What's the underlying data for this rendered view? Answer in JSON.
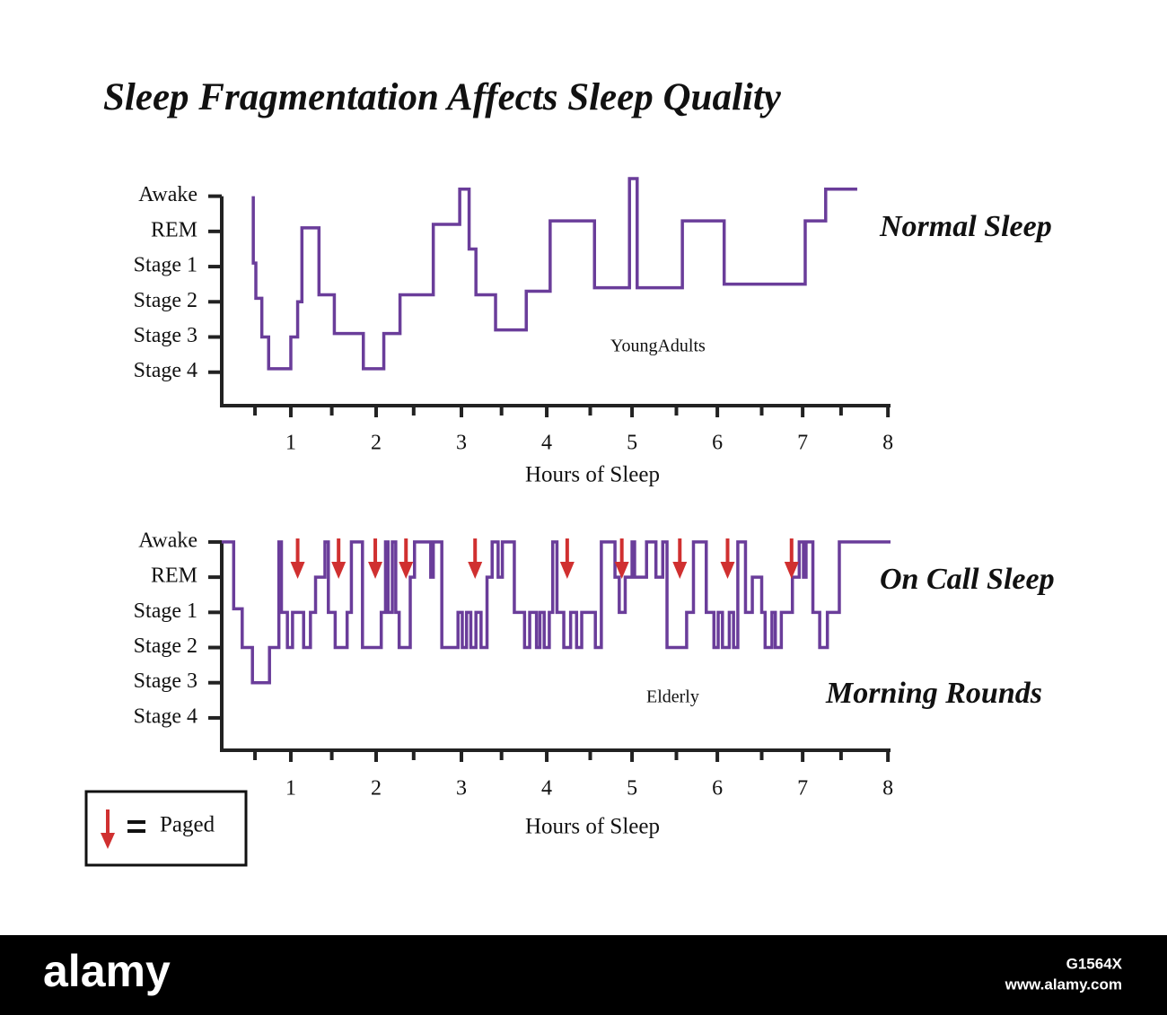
{
  "title": "Sleep Fragmentation Affects Sleep Quality",
  "legend": {
    "label": "Paged"
  },
  "watermark": {
    "brand": "alamy",
    "id": "G1564X",
    "url": "www.alamy.com"
  },
  "chart_data": [
    {
      "type": "line",
      "step": "post",
      "label": "Normal Sleep",
      "annotation": "YoungAdults",
      "xlabel": "Hours of Sleep",
      "color": "#6a3d9a",
      "xlim": [
        0.19,
        8.03
      ],
      "xticks": [
        1,
        2,
        3,
        4,
        5,
        6,
        7,
        8
      ],
      "xminor": [
        0.58,
        1.48,
        2.44,
        3.47,
        4.51,
        5.52,
        6.52,
        7.45
      ],
      "ylim": [
        -0.95,
        5.5
      ],
      "yticks": [
        {
          "value": 0,
          "label": "Stage 4"
        },
        {
          "value": 1,
          "label": "Stage 3"
        },
        {
          "value": 2,
          "label": "Stage 2"
        },
        {
          "value": 3,
          "label": "Stage 1"
        },
        {
          "value": 4,
          "label": "REM"
        },
        {
          "value": 5,
          "label": "Awake"
        }
      ],
      "x": [
        0.56,
        0.56,
        0.59,
        0.66,
        0.74,
        1.0,
        1.08,
        1.13,
        1.33,
        1.51,
        1.85,
        2.09,
        2.28,
        2.67,
        2.98,
        3.09,
        3.17,
        3.4,
        3.76,
        4.04,
        4.56,
        4.97,
        5.06,
        5.59,
        6.08,
        7.03,
        7.27,
        7.64
      ],
      "values": [
        5,
        3.1,
        2.1,
        1,
        0.1,
        1,
        2,
        4.1,
        2.2,
        1.1,
        0.1,
        1.1,
        2.2,
        4.2,
        5.2,
        3.5,
        2.2,
        1.2,
        2.3,
        4.3,
        2.4,
        5.5,
        2.4,
        4.3,
        2.5,
        4.3,
        5.2,
        5.2
      ]
    },
    {
      "type": "line",
      "step": "post",
      "label": "On Call Sleep",
      "label2": "Morning Rounds",
      "annotation": "Elderly",
      "xlabel": "Hours of Sleep",
      "color": "#6a3d9a",
      "paged_color": "#d03030",
      "xlim": [
        0.19,
        8.03
      ],
      "xticks": [
        1,
        2,
        3,
        4,
        5,
        6,
        7,
        8
      ],
      "xminor": [
        0.58,
        1.48,
        2.44,
        3.47,
        4.51,
        5.52,
        6.52,
        7.45
      ],
      "ylim": [
        -0.92,
        5.1
      ],
      "yticks": [
        {
          "value": 0,
          "label": "Stage 4"
        },
        {
          "value": 1,
          "label": "Stage 3"
        },
        {
          "value": 2,
          "label": "Stage 2"
        },
        {
          "value": 3,
          "label": "Stage 1"
        },
        {
          "value": 4,
          "label": "REM"
        },
        {
          "value": 5,
          "label": "Awake"
        }
      ],
      "x": [
        0.19,
        0.33,
        0.43,
        0.55,
        0.75,
        0.86,
        0.89,
        0.96,
        1.02,
        1.15,
        1.23,
        1.29,
        1.4,
        1.44,
        1.52,
        1.66,
        1.71,
        1.84,
        2.06,
        2.11,
        2.14,
        2.19,
        2.23,
        2.27,
        2.4,
        2.45,
        2.64,
        2.67,
        2.77,
        2.96,
        3.01,
        3.06,
        3.11,
        3.17,
        3.23,
        3.3,
        3.36,
        3.43,
        3.48,
        3.62,
        3.74,
        3.8,
        3.88,
        3.92,
        3.97,
        4.03,
        4.07,
        4.12,
        4.2,
        4.28,
        4.35,
        4.41,
        4.57,
        4.64,
        4.8,
        4.85,
        4.92,
        5.0,
        5.03,
        5.17,
        5.28,
        5.36,
        5.41,
        5.64,
        5.72,
        5.87,
        5.96,
        6.01,
        6.06,
        6.14,
        6.19,
        6.24,
        6.33,
        6.41,
        6.52,
        6.56,
        6.64,
        6.68,
        6.75,
        6.88,
        6.96,
        7.01,
        7.04,
        7.12,
        7.2,
        7.29,
        7.43,
        8.03
      ],
      "values": [
        5,
        3.1,
        2,
        1,
        2,
        5,
        3,
        2,
        3,
        2,
        3,
        4,
        5,
        3,
        2,
        3,
        5,
        2,
        3,
        5,
        3,
        5,
        3,
        2,
        4,
        5,
        4,
        5,
        2,
        3,
        2,
        3,
        2,
        3,
        2,
        4,
        5,
        4,
        5,
        3,
        2,
        3,
        2,
        3,
        2,
        3,
        5,
        3,
        2,
        3,
        2,
        3,
        2,
        5,
        4,
        3,
        4,
        5,
        4,
        5,
        4,
        5,
        2,
        3,
        5,
        3,
        2,
        3,
        2,
        3,
        2,
        5,
        3,
        4,
        3,
        2,
        3,
        2,
        3,
        4,
        5,
        4,
        5,
        3,
        2,
        3,
        5,
        5
      ],
      "paged": [
        1.08,
        1.56,
        1.99,
        2.35,
        3.16,
        4.24,
        4.88,
        5.56,
        6.12,
        6.87
      ]
    }
  ]
}
